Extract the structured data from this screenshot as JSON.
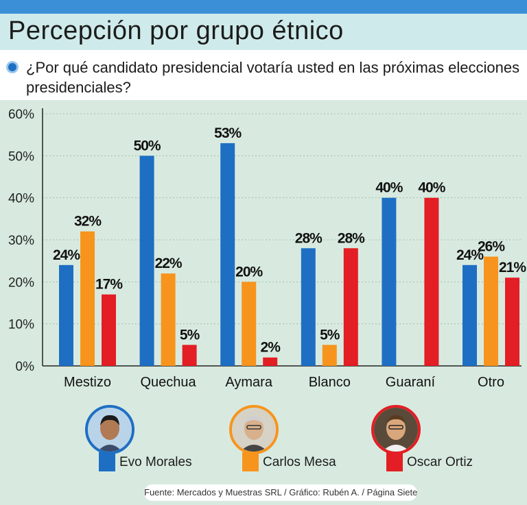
{
  "title": "Percepción por grupo étnico",
  "question": "¿Por qué candidato presidencial votaría usted en las próximas  elecciones presidenciales?",
  "colors": {
    "evo": "#1e6fc4",
    "mesa": "#f7941d",
    "ortiz": "#e31e24"
  },
  "chart_data": {
    "type": "bar",
    "categories": [
      "Mestizo",
      "Quechua",
      "Aymara",
      "Blanco",
      "Guaraní",
      "Otro"
    ],
    "series": [
      {
        "name": "Evo Morales",
        "values": [
          24,
          50,
          53,
          28,
          40,
          24
        ]
      },
      {
        "name": "Carlos Mesa",
        "values": [
          32,
          22,
          20,
          5,
          null,
          26
        ]
      },
      {
        "name": "Oscar Ortiz",
        "values": [
          17,
          5,
          2,
          28,
          40,
          21
        ]
      }
    ],
    "value_labels": [
      [
        "24%",
        "50%",
        "53%",
        "28%",
        "40%",
        "24%"
      ],
      [
        "32%",
        "22%",
        "20%",
        "5%",
        "",
        "26%"
      ],
      [
        "17%",
        "5%",
        "2%",
        "28%",
        "40%",
        "21%"
      ]
    ],
    "yticks": [
      "0%",
      "10%",
      "20%",
      "30%",
      "40%",
      "50%",
      "60%"
    ],
    "ylim": [
      0,
      60
    ],
    "grid": true,
    "legend_position": "bottom"
  },
  "legend": {
    "items": [
      {
        "label": "Evo Morales",
        "avatar": "evo-morales-portrait"
      },
      {
        "label": "Carlos Mesa",
        "avatar": "carlos-mesa-portrait"
      },
      {
        "label": "Oscar Ortiz",
        "avatar": "oscar-ortiz-portrait"
      }
    ]
  },
  "source": "Fuente: Mercados y Muestras SRL / Gráfico: Rubén A. / Página Siete"
}
